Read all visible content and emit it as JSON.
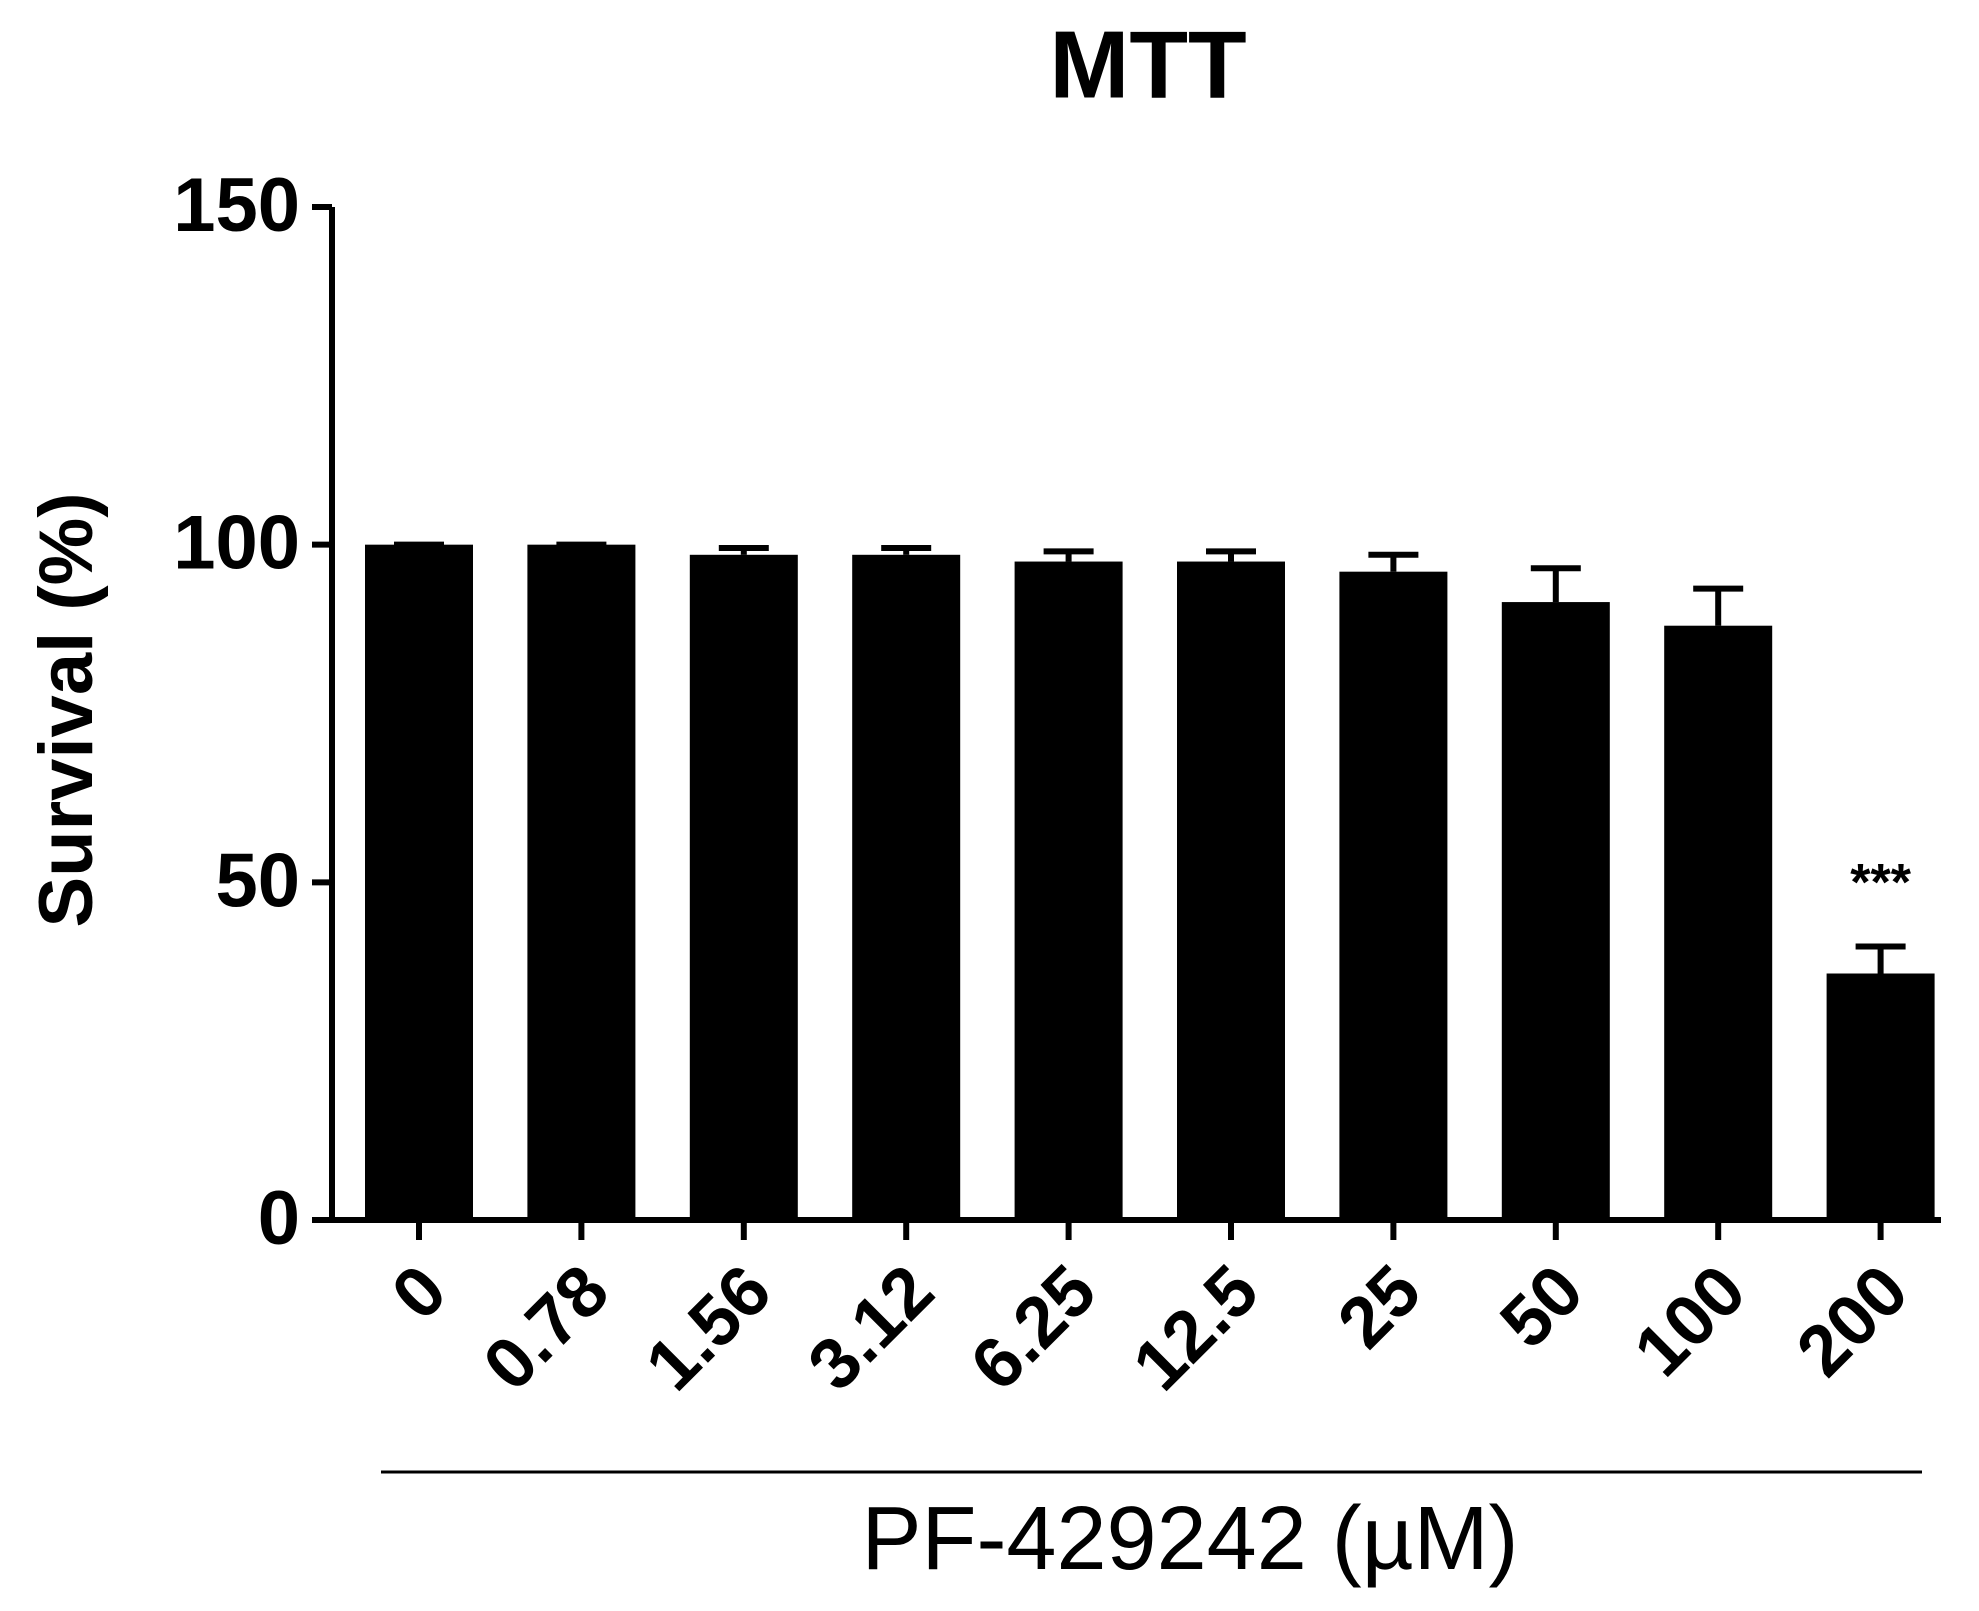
{
  "chart_data": {
    "type": "bar",
    "title": "MTT",
    "ylabel": "Survival (%)",
    "xlabel": "PF-429242 (µM)",
    "categories": [
      "0",
      "0.78",
      "1.56",
      "3.12",
      "6.25",
      "12.5",
      "25",
      "50",
      "100",
      "200"
    ],
    "values": [
      100,
      100,
      98.5,
      98.5,
      97.5,
      97.5,
      96,
      91.5,
      88,
      36.5
    ],
    "errors": [
      0,
      0,
      1,
      1,
      1.5,
      1.5,
      2.5,
      5,
      5.5,
      4
    ],
    "color": "#000000",
    "annotation": "***",
    "ylim": [
      0,
      150
    ],
    "yticks": [
      0,
      50,
      100,
      150
    ],
    "grid": false
  }
}
